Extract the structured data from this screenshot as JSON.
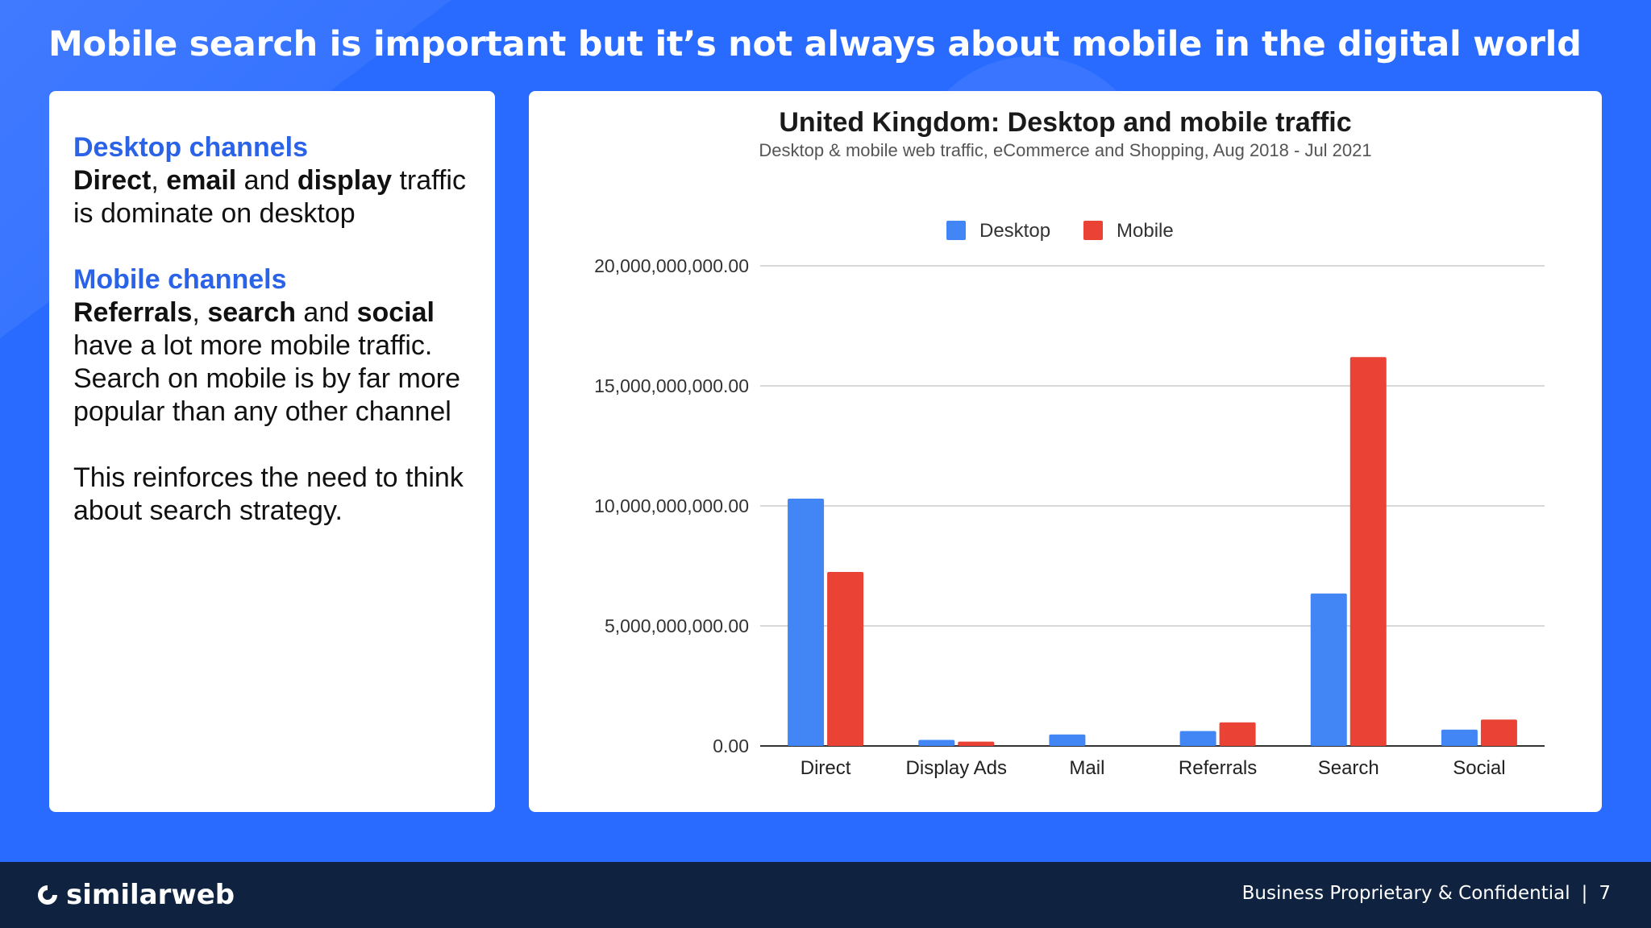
{
  "slide": {
    "title": "Mobile search is important but it’s not always about mobile in the digital world"
  },
  "left_panel": {
    "desktop_heading": "Desktop channels",
    "desktop_w1": "Direct",
    "desktop_t1": ", ",
    "desktop_w2": "email",
    "desktop_t2": " and ",
    "desktop_w3": "display",
    "desktop_t3": " traffic is dominate on desktop",
    "mobile_heading": "Mobile channels",
    "mobile_w1": "Referrals",
    "mobile_t1": ", ",
    "mobile_w2": "search",
    "mobile_t2": " and ",
    "mobile_w3": "social",
    "mobile_t3": " have a lot more mobile traffic. Search on mobile is by far more popular than any other channel",
    "conclusion": "This reinforces the need to think about search strategy."
  },
  "chart_data": {
    "type": "bar",
    "title": "United Kingdom: Desktop and mobile traffic",
    "subtitle": "Desktop & mobile web traffic, eCommerce and Shopping, Aug 2018 - Jul 2021",
    "categories": [
      "Direct",
      "Display Ads",
      "Mail",
      "Referrals",
      "Search",
      "Social"
    ],
    "series": [
      {
        "name": "Desktop",
        "color": "#4285f4",
        "values": [
          10300000000,
          250000000,
          480000000,
          620000000,
          6350000000,
          680000000
        ]
      },
      {
        "name": "Mobile",
        "color": "#ea4335",
        "values": [
          7250000000,
          180000000,
          0,
          980000000,
          16200000000,
          1100000000
        ]
      }
    ],
    "ylim": [
      0,
      20000000000
    ],
    "yticks": [
      "0.00",
      "5,000,000,000.00",
      "10,000,000,000.00",
      "15,000,000,000.00",
      "20,000,000,000.00"
    ],
    "legend_position": "top",
    "grid": true
  },
  "footer": {
    "brand": "similarweb",
    "confidential": "Business Proprietary & Confidential",
    "separator": "|",
    "page_number": "7"
  }
}
